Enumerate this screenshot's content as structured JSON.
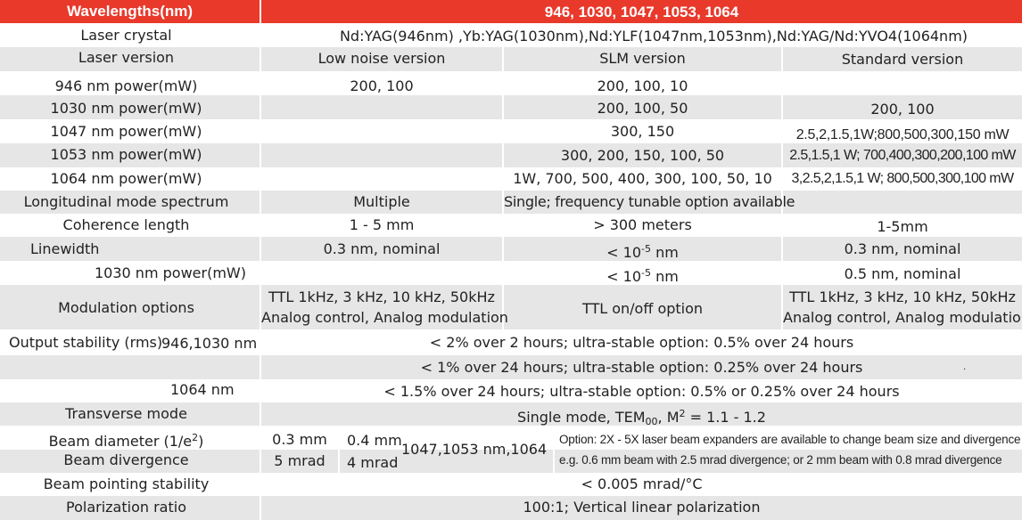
{
  "header": {
    "label": "Wavelengths(nm)",
    "value": "946, 1030, 1047, 1053, 1064"
  },
  "laser_crystal": {
    "label": "Laser crystal",
    "value": "Nd:YAG(946nm) ,Yb:YAG(1030nm),Nd:YLF(1047nm,1053nm),Nd:YAG/Nd:YVO4(1064nm)"
  },
  "laser_version": {
    "label": "Laser version",
    "low": "Low noise version",
    "slm": "SLM version",
    "std": "Standard version"
  },
  "p946": {
    "label": "946 nm power(mW)",
    "low": "200, 100",
    "slm": "200, 100, 10",
    "std": ""
  },
  "p1030": {
    "label": "1030 nm power(mW)",
    "low": "",
    "slm": "200, 100, 50",
    "std": "200, 100"
  },
  "p1047": {
    "label": "1047 nm power(mW)",
    "low": "",
    "slm": "300, 150",
    "std": "2.5,2,1.5,1W;800,500,300,150 mW"
  },
  "p1053": {
    "label": "1053 nm power(mW)",
    "low": "",
    "slm": "300, 200, 150, 100, 50",
    "std": "2.5,1.5,1 W; 700,400,300,200,100 mW"
  },
  "p1064": {
    "label": "1064 nm power(mW)",
    "low": "",
    "slm": "1W, 700, 500, 400, 300, 100, 50, 10",
    "std": "3,2.5,2,1.5,1 W; 800,500,300,100 mW"
  },
  "longitudinal": {
    "label": "Longitudinal mode spectrum",
    "low": "Multiple",
    "slm": "Single; frequency tunable option available",
    "std": ""
  },
  "coherence": {
    "label": "Coherence length",
    "low": "1 - 5 mm",
    "slm": "> 300 meters",
    "std": "1-5mm"
  },
  "linewidth": {
    "label": "Linewidth",
    "low": "0.3 nm, nominal",
    "slm_pre": "< 10",
    "slm_sup": "-5",
    "slm_post": " nm",
    "std": "0.3 nm, nominal"
  },
  "p1030b": {
    "label": "1030 nm power(mW)",
    "slm_pre": "< 10",
    "slm_sup": "-5",
    "slm_post": " nm",
    "std": "0.5 nm, nominal"
  },
  "modulation": {
    "label": "Modulation options",
    "low_1": "TTL  1kHz, 3 kHz, 10 kHz, 50kHz",
    "low_2": "Analog control, Analog modulation",
    "slm": "TTL on/off option",
    "std_1": "TTL  1kHz, 3 kHz, 10 kHz, 50kHz",
    "std_2": "Analog control, Analog modulation"
  },
  "stability": {
    "label": "Output stability (rms)",
    "sub_1": "946,1030 nm",
    "val_1": "< 2% over 2 hours; ultra-stable option:  0.5% over 24 hours",
    "val_2": "< 1% over 24 hours; ultra-stable option: 0.25% over 24 hours",
    "sub_3": "1064 nm",
    "val_3": "< 1.5% over 24 hours; ultra-stable option: 0.5% or 0.25% over 24 hours",
    "dot": "."
  },
  "transverse": {
    "label": "Transverse mode",
    "pre": "Single mode, TEM",
    "sub": "00",
    "mid": ", M",
    "sup": "2",
    "post": " = 1.1 - 1.2"
  },
  "beam": {
    "diam_label_pre": "Beam diameter (1/e",
    "diam_label_sup": "2",
    "diam_label_post": ")",
    "div_label": "Beam divergence",
    "diam_a": "0.3 mm",
    "diam_b": "0.4 mm",
    "div_a": "5 mrad",
    "div_b": "4 mrad",
    "wl": "1047,1053 nm,1064",
    "opt_1": "Option: 2X - 5X laser beam expanders are available to change beam size and divergence",
    "opt_2": "e.g.  0.6 mm beam with 2.5 mrad divergence; or 2 mm beam with 0.8 mrad divergence"
  },
  "pointing": {
    "label": "Beam pointing stability",
    "value": "< 0.005 mrad/°C"
  },
  "polarization": {
    "label": "Polarization ratio",
    "value": "100:1; Vertical linear polarization"
  }
}
